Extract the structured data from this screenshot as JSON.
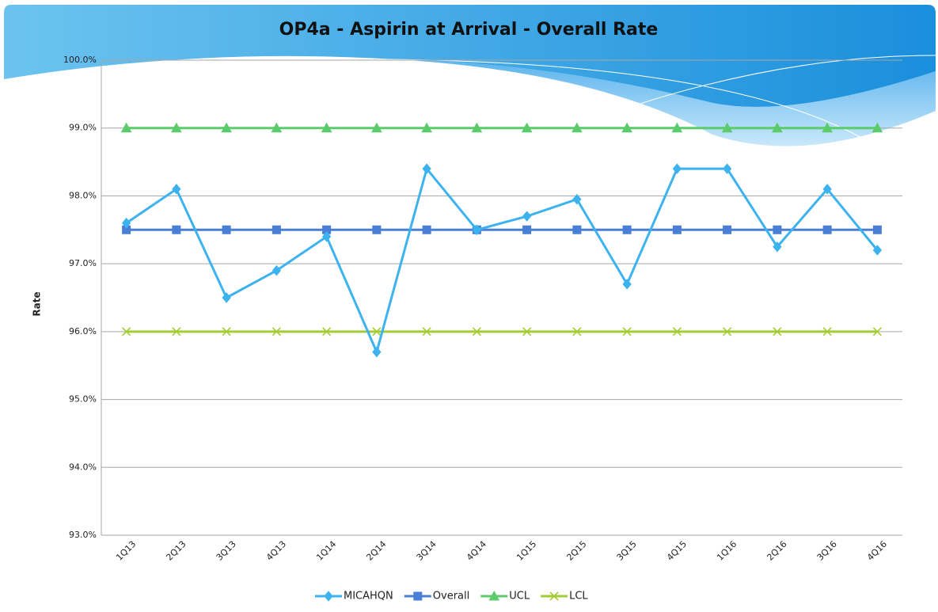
{
  "chart_data": {
    "type": "line",
    "title": "OP4a - Aspirin at Arrival - Overall Rate",
    "y_label": "Rate",
    "categories": [
      "1Q13",
      "2Q13",
      "3Q13",
      "4Q13",
      "1Q14",
      "2Q14",
      "3Q14",
      "4Q14",
      "1Q15",
      "2Q15",
      "3Q15",
      "4Q15",
      "1Q16",
      "2Q16",
      "3Q16",
      "4Q16"
    ],
    "series": [
      {
        "name": "MICAHQN",
        "color": "#3cb3ef",
        "marker": "diamond",
        "values": [
          97.6,
          98.1,
          96.5,
          96.9,
          97.4,
          95.7,
          98.4,
          97.5,
          97.7,
          97.95,
          96.7,
          98.4,
          98.4,
          97.25,
          98.1,
          97.2
        ]
      },
      {
        "name": "Overall",
        "color": "#4a7fd6",
        "marker": "square",
        "values": [
          97.5,
          97.5,
          97.5,
          97.5,
          97.5,
          97.5,
          97.5,
          97.5,
          97.5,
          97.5,
          97.5,
          97.5,
          97.5,
          97.5,
          97.5,
          97.5
        ]
      },
      {
        "name": "UCL",
        "color": "#5ccb6c",
        "marker": "triangle",
        "values": [
          99,
          99,
          99,
          99,
          99,
          99,
          99,
          99,
          99,
          99,
          99,
          99,
          99,
          99,
          99,
          99
        ]
      },
      {
        "name": "LCL",
        "color": "#a3cc35",
        "marker": "x",
        "values": [
          96,
          96,
          96,
          96,
          96,
          96,
          96,
          96,
          96,
          96,
          96,
          96,
          96,
          96,
          96,
          96
        ]
      }
    ],
    "ylim": [
      93,
      100
    ],
    "yticks": [
      {
        "value": 93,
        "label": "93.0%"
      },
      {
        "value": 94,
        "label": "94.0%"
      },
      {
        "value": 95,
        "label": "95.0%"
      },
      {
        "value": 96,
        "label": "96.0%"
      },
      {
        "value": 97,
        "label": "97.0%"
      },
      {
        "value": 98,
        "label": "98.0%"
      },
      {
        "value": 99,
        "label": "99.0%"
      },
      {
        "value": 100,
        "label": "100.0%"
      }
    ],
    "grid": true,
    "legend": "bottom"
  }
}
